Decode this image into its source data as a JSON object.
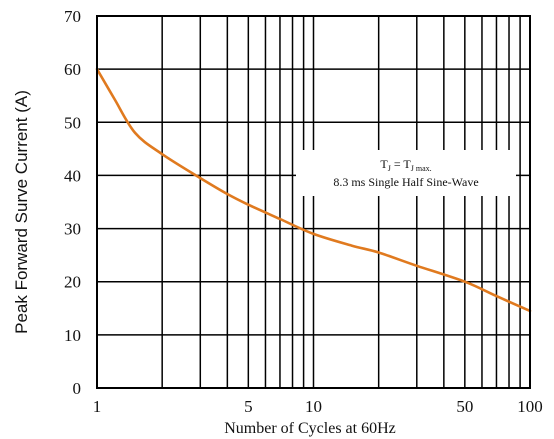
{
  "chart_data": {
    "type": "line",
    "xscale": "log",
    "xlim": [
      1,
      100
    ],
    "ylim": [
      0,
      70
    ],
    "grid": true,
    "xlabel": "Number of Cycles at 60Hz",
    "ylabel": "Peak Forward Surve Current (A)",
    "xticks": [
      1,
      5,
      10,
      50,
      100
    ],
    "xtick_labels": [
      "1",
      "5",
      "10",
      "50",
      "100"
    ],
    "yticks": [
      0,
      10,
      20,
      30,
      40,
      50,
      60,
      70
    ],
    "ytick_labels": [
      "0",
      "10",
      "20",
      "30",
      "40",
      "50",
      "60",
      "70"
    ],
    "annotation": {
      "line1_main": "T",
      "line1_sub1": "J",
      "line1_eq": " = T",
      "line1_sub2": "J max.",
      "line2": "8.3  ms Single Half Sine-Wave"
    },
    "series": [
      {
        "color": "#e07a1f",
        "x": [
          1,
          1.2,
          1.5,
          2,
          3,
          4,
          5,
          7,
          10,
          15,
          20,
          30,
          50,
          70,
          100
        ],
        "y": [
          60,
          54.5,
          48,
          44,
          39.5,
          36.5,
          34.5,
          31.8,
          29,
          26.8,
          25.5,
          23,
          20,
          17.3,
          14.5
        ]
      }
    ]
  }
}
